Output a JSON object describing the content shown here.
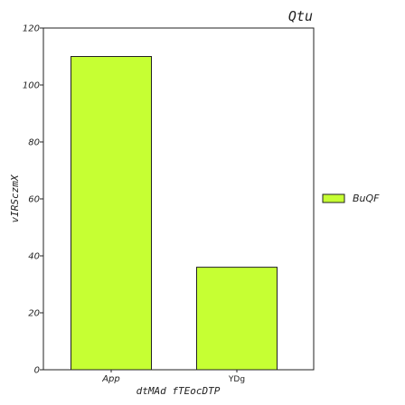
{
  "chart_data": {
    "type": "bar",
    "title": "Qtu",
    "xlabel": "dtMAd fTEocDTP",
    "ylabel": "vIRSczmX",
    "categories": [
      "App",
      "YDg"
    ],
    "series": [
      {
        "name": "BuQF",
        "values": [
          110,
          36
        ],
        "color": "#c6ff33"
      }
    ],
    "ylim": [
      0,
      120
    ],
    "yticks": [
      0,
      20,
      40,
      60,
      80,
      100,
      120
    ],
    "ytick_labels": [
      "0",
      "20",
      "40",
      "60",
      "80",
      "100",
      "120"
    ],
    "grid": false,
    "legend_position": "right"
  },
  "colors": {
    "bar_fill": "#c6ff33",
    "bar_edge": "#222222",
    "axes": "#222222"
  }
}
